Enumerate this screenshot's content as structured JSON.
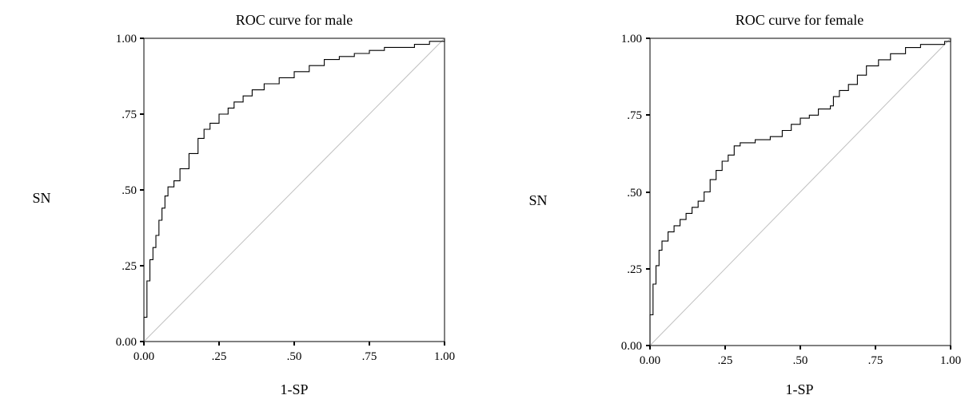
{
  "chart_data": [
    {
      "type": "line",
      "title": "ROC curve for male",
      "xlabel": "1-SP",
      "ylabel": "SN",
      "xlim": [
        0,
        1
      ],
      "ylim": [
        0,
        1
      ],
      "xticks": [
        "0.00",
        ".25",
        ".50",
        ".75",
        "1.00"
      ],
      "yticks": [
        "0.00",
        ".25",
        ".50",
        ".75",
        "1.00"
      ],
      "grid": false,
      "series": [
        {
          "style": "step",
          "x": [
            0.0,
            0.0,
            0.01,
            0.02,
            0.03,
            0.04,
            0.05,
            0.06,
            0.07,
            0.08,
            0.1,
            0.12,
            0.15,
            0.18,
            0.2,
            0.22,
            0.25,
            0.28,
            0.3,
            0.33,
            0.36,
            0.4,
            0.45,
            0.5,
            0.55,
            0.6,
            0.65,
            0.7,
            0.75,
            0.8,
            0.85,
            0.9,
            0.95,
            1.0
          ],
          "y": [
            0.0,
            0.08,
            0.2,
            0.27,
            0.31,
            0.35,
            0.4,
            0.44,
            0.48,
            0.51,
            0.53,
            0.57,
            0.62,
            0.67,
            0.7,
            0.72,
            0.75,
            0.77,
            0.79,
            0.81,
            0.83,
            0.85,
            0.87,
            0.89,
            0.91,
            0.93,
            0.94,
            0.95,
            0.96,
            0.97,
            0.97,
            0.98,
            0.99,
            1.0
          ]
        },
        {
          "style": "reference",
          "x": [
            0,
            1
          ],
          "y": [
            0,
            1
          ]
        }
      ]
    },
    {
      "type": "line",
      "title": "ROC curve for female",
      "xlabel": "1-SP",
      "ylabel": "SN",
      "xlim": [
        0,
        1
      ],
      "ylim": [
        0,
        1
      ],
      "xticks": [
        "0.00",
        ".25",
        ".50",
        ".75",
        "1.00"
      ],
      "yticks": [
        "0.00",
        ".25",
        ".50",
        ".75",
        "1.00"
      ],
      "grid": false,
      "series": [
        {
          "style": "step",
          "x": [
            0.0,
            0.0,
            0.01,
            0.02,
            0.03,
            0.04,
            0.06,
            0.08,
            0.1,
            0.12,
            0.14,
            0.16,
            0.18,
            0.2,
            0.22,
            0.24,
            0.26,
            0.28,
            0.3,
            0.35,
            0.4,
            0.44,
            0.47,
            0.5,
            0.53,
            0.56,
            0.6,
            0.61,
            0.63,
            0.66,
            0.69,
            0.72,
            0.76,
            0.8,
            0.85,
            0.9,
            0.98,
            1.0
          ],
          "y": [
            0.0,
            0.1,
            0.2,
            0.26,
            0.31,
            0.34,
            0.37,
            0.39,
            0.41,
            0.43,
            0.45,
            0.47,
            0.5,
            0.54,
            0.57,
            0.6,
            0.62,
            0.65,
            0.66,
            0.67,
            0.68,
            0.7,
            0.72,
            0.74,
            0.75,
            0.77,
            0.78,
            0.81,
            0.83,
            0.85,
            0.88,
            0.91,
            0.93,
            0.95,
            0.97,
            0.98,
            0.99,
            1.0
          ]
        },
        {
          "style": "reference",
          "x": [
            0,
            1
          ],
          "y": [
            0,
            1
          ]
        }
      ]
    }
  ]
}
